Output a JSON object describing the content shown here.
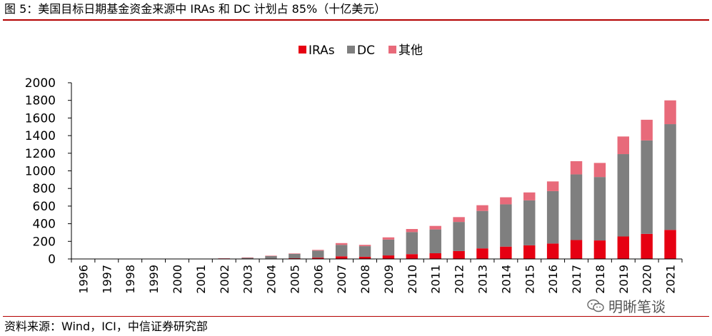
{
  "header": {
    "title": "图 5：美国目标日期基金资金来源中 IRAs 和 DC 计划占 85%（十亿美元）"
  },
  "footer": {
    "source": "资料来源：Wind，ICI，中信证券研究部",
    "watermark": "明晰笔谈",
    "watermark_icon": "wechat-icon"
  },
  "colors": {
    "iras": "#e60012",
    "dc": "#7f7f7f",
    "other": "#e86a7a",
    "accent_rule": "#b30000"
  },
  "chart_data": {
    "type": "bar",
    "stacked": true,
    "title": "",
    "xlabel": "",
    "ylabel": "",
    "ylim": [
      0,
      2000
    ],
    "yticks": [
      0,
      200,
      400,
      600,
      800,
      1000,
      1200,
      1400,
      1600,
      1800,
      2000
    ],
    "grid": false,
    "legend_position": "top-center",
    "categories": [
      "1996",
      "1997",
      "1998",
      "1999",
      "2000",
      "2001",
      "2002",
      "2003",
      "2004",
      "2005",
      "2006",
      "2007",
      "2008",
      "2009",
      "2010",
      "2011",
      "2012",
      "2013",
      "2014",
      "2015",
      "2016",
      "2017",
      "2018",
      "2019",
      "2020",
      "2021"
    ],
    "series": [
      {
        "name": "IRAs",
        "color": "#e60012",
        "values": [
          0,
          0,
          0,
          1,
          1,
          1,
          2,
          3,
          5,
          8,
          15,
          30,
          25,
          40,
          55,
          65,
          90,
          120,
          140,
          155,
          175,
          215,
          210,
          255,
          285,
          330
        ]
      },
      {
        "name": "DC",
        "color": "#7f7f7f",
        "values": [
          0,
          0,
          1,
          1,
          2,
          3,
          5,
          12,
          28,
          50,
          80,
          130,
          120,
          180,
          250,
          270,
          330,
          425,
          480,
          510,
          595,
          745,
          720,
          935,
          1060,
          1200
        ]
      },
      {
        "name": "其他",
        "color": "#e86a7a",
        "values": [
          0,
          0,
          0,
          0,
          0,
          0,
          1,
          2,
          4,
          5,
          8,
          20,
          15,
          25,
          35,
          40,
          55,
          65,
          80,
          90,
          110,
          150,
          160,
          200,
          235,
          270
        ]
      }
    ]
  }
}
